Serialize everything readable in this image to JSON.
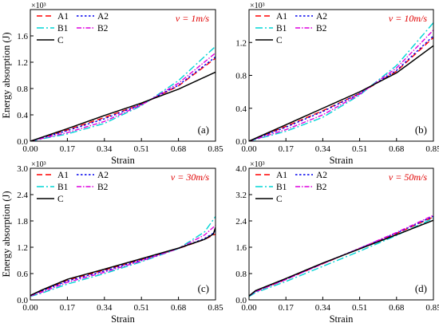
{
  "colors": {
    "A1": "#ff0000",
    "A2": "#0000ee",
    "B1": "#00d5d5",
    "B2": "#dd00dd",
    "C": "#000000"
  },
  "chart_data": [
    {
      "type": "line",
      "panel_label": "(a)",
      "velocity": "v = 1m/s",
      "xlabel": "Strain",
      "ylabel": "Energy absorption (J)",
      "y_scale_label": "×10³",
      "xlim": [
        0,
        0.85
      ],
      "ylim": [
        0,
        2.0
      ],
      "xticks": [
        "0.00",
        "0.17",
        "0.34",
        "0.51",
        "0.68",
        "0.85"
      ],
      "yticks": [
        "0.0",
        "0.4",
        "0.8",
        "1.2",
        "1.6"
      ],
      "ytick_values": [
        0,
        0.4,
        0.8,
        1.2,
        1.6
      ],
      "legend": [
        "A1",
        "A2",
        "B1",
        "B2",
        "C"
      ],
      "series": [
        {
          "name": "A1",
          "x": [
            0,
            0.17,
            0.34,
            0.51,
            0.68,
            0.85
          ],
          "y": [
            0,
            0.17,
            0.36,
            0.56,
            0.84,
            1.26
          ]
        },
        {
          "name": "A2",
          "x": [
            0,
            0.17,
            0.34,
            0.51,
            0.68,
            0.85
          ],
          "y": [
            0,
            0.16,
            0.34,
            0.56,
            0.85,
            1.28
          ]
        },
        {
          "name": "B1",
          "x": [
            0,
            0.17,
            0.34,
            0.51,
            0.68,
            0.85
          ],
          "y": [
            0,
            0.11,
            0.27,
            0.54,
            0.92,
            1.44
          ]
        },
        {
          "name": "B2",
          "x": [
            0,
            0.17,
            0.34,
            0.51,
            0.68,
            0.85
          ],
          "y": [
            0,
            0.13,
            0.3,
            0.55,
            0.88,
            1.34
          ]
        },
        {
          "name": "C",
          "x": [
            0,
            0.17,
            0.34,
            0.51,
            0.68,
            0.85
          ],
          "y": [
            0,
            0.19,
            0.39,
            0.58,
            0.79,
            1.05
          ]
        }
      ]
    },
    {
      "type": "line",
      "panel_label": "(b)",
      "velocity": "v = 10m/s",
      "xlabel": "Strain",
      "ylabel": "",
      "y_scale_label": "×10³",
      "xlim": [
        0,
        0.85
      ],
      "ylim": [
        0,
        1.6
      ],
      "xticks": [
        "0.00",
        "0.17",
        "0.34",
        "0.51",
        "0.68",
        "0.85"
      ],
      "yticks": [
        "0.0",
        "0.4",
        "0.8",
        "1.2"
      ],
      "ytick_values": [
        0,
        0.4,
        0.8,
        1.2
      ],
      "legend": [
        "A1",
        "A2",
        "B1",
        "B2",
        "C"
      ],
      "series": [
        {
          "name": "A1",
          "x": [
            0,
            0.17,
            0.34,
            0.51,
            0.68,
            0.85
          ],
          "y": [
            0,
            0.18,
            0.37,
            0.58,
            0.85,
            1.26
          ]
        },
        {
          "name": "A2",
          "x": [
            0,
            0.17,
            0.34,
            0.51,
            0.68,
            0.85
          ],
          "y": [
            0,
            0.17,
            0.36,
            0.58,
            0.86,
            1.28
          ]
        },
        {
          "name": "B1",
          "x": [
            0,
            0.17,
            0.34,
            0.51,
            0.68,
            0.85
          ],
          "y": [
            0,
            0.12,
            0.29,
            0.56,
            0.92,
            1.44
          ]
        },
        {
          "name": "B2",
          "x": [
            0,
            0.17,
            0.34,
            0.51,
            0.68,
            0.85
          ],
          "y": [
            0,
            0.14,
            0.32,
            0.57,
            0.89,
            1.35
          ]
        },
        {
          "name": "C",
          "x": [
            0,
            0.17,
            0.34,
            0.51,
            0.68,
            0.85
          ],
          "y": [
            0,
            0.2,
            0.4,
            0.6,
            0.83,
            1.16
          ]
        }
      ]
    },
    {
      "type": "line",
      "panel_label": "(c)",
      "velocity": "v = 30m/s",
      "xlabel": "Strain",
      "ylabel": "Energy absorption (J)",
      "y_scale_label": "×10³",
      "xlim": [
        0,
        0.85
      ],
      "ylim": [
        0,
        3.0
      ],
      "xticks": [
        "0.00",
        "0.17",
        "0.34",
        "0.51",
        "0.68",
        "0.85"
      ],
      "yticks": [
        "0.0",
        "0.6",
        "1.2",
        "1.8",
        "2.4",
        "3.0"
      ],
      "ytick_values": [
        0,
        0.6,
        1.2,
        1.8,
        2.4,
        3.0
      ],
      "legend": [
        "A1",
        "A2",
        "B1",
        "B2",
        "C"
      ],
      "series": [
        {
          "name": "A1",
          "x": [
            0,
            0.05,
            0.17,
            0.34,
            0.51,
            0.68,
            0.8,
            0.85
          ],
          "y": [
            0.1,
            0.2,
            0.45,
            0.68,
            0.92,
            1.17,
            1.38,
            1.5
          ]
        },
        {
          "name": "A2",
          "x": [
            0,
            0.05,
            0.17,
            0.34,
            0.51,
            0.68,
            0.8,
            0.85
          ],
          "y": [
            0.1,
            0.2,
            0.43,
            0.66,
            0.91,
            1.17,
            1.4,
            1.55
          ]
        },
        {
          "name": "B1",
          "x": [
            0,
            0.05,
            0.17,
            0.34,
            0.51,
            0.68,
            0.8,
            0.85
          ],
          "y": [
            0.08,
            0.15,
            0.36,
            0.6,
            0.87,
            1.17,
            1.55,
            1.9
          ]
        },
        {
          "name": "B2",
          "x": [
            0,
            0.05,
            0.17,
            0.34,
            0.51,
            0.68,
            0.8,
            0.85
          ],
          "y": [
            0.09,
            0.17,
            0.4,
            0.63,
            0.89,
            1.17,
            1.48,
            1.7
          ]
        },
        {
          "name": "C",
          "x": [
            0,
            0.05,
            0.17,
            0.34,
            0.51,
            0.68,
            0.8,
            0.84,
            0.85
          ],
          "y": [
            0.1,
            0.22,
            0.47,
            0.7,
            0.94,
            1.18,
            1.38,
            1.5,
            1.65
          ]
        }
      ]
    },
    {
      "type": "line",
      "panel_label": "(d)",
      "velocity": "v = 50m/s",
      "xlabel": "Strain",
      "ylabel": "",
      "y_scale_label": "×10³",
      "xlim": [
        0,
        0.85
      ],
      "ylim": [
        0,
        4.0
      ],
      "xticks": [
        "0.00",
        "0.17",
        "0.34",
        "0.51",
        "0.68",
        "0.85"
      ],
      "yticks": [
        "0.0",
        "0.8",
        "1.6",
        "2.4",
        "3.2",
        "4.0"
      ],
      "ytick_values": [
        0,
        0.8,
        1.6,
        2.4,
        3.2,
        4.0
      ],
      "legend": [
        "A1",
        "A2",
        "B1",
        "B2",
        "C"
      ],
      "series": [
        {
          "name": "A1",
          "x": [
            0,
            0.03,
            0.17,
            0.34,
            0.51,
            0.68,
            0.85
          ],
          "y": [
            0.12,
            0.25,
            0.62,
            1.1,
            1.56,
            2.02,
            2.52
          ]
        },
        {
          "name": "A2",
          "x": [
            0,
            0.03,
            0.17,
            0.34,
            0.51,
            0.68,
            0.85
          ],
          "y": [
            0.12,
            0.26,
            0.63,
            1.11,
            1.57,
            2.03,
            2.54
          ]
        },
        {
          "name": "B1",
          "x": [
            0,
            0.03,
            0.17,
            0.34,
            0.51,
            0.68,
            0.85
          ],
          "y": [
            0.1,
            0.22,
            0.56,
            1.02,
            1.48,
            1.96,
            2.48
          ]
        },
        {
          "name": "B2",
          "x": [
            0,
            0.03,
            0.17,
            0.34,
            0.51,
            0.68,
            0.85
          ],
          "y": [
            0.12,
            0.25,
            0.62,
            1.1,
            1.57,
            2.05,
            2.57
          ]
        },
        {
          "name": "C",
          "x": [
            0,
            0.03,
            0.17,
            0.34,
            0.51,
            0.68,
            0.85
          ],
          "y": [
            0.12,
            0.28,
            0.65,
            1.12,
            1.55,
            1.98,
            2.42
          ]
        }
      ]
    }
  ]
}
